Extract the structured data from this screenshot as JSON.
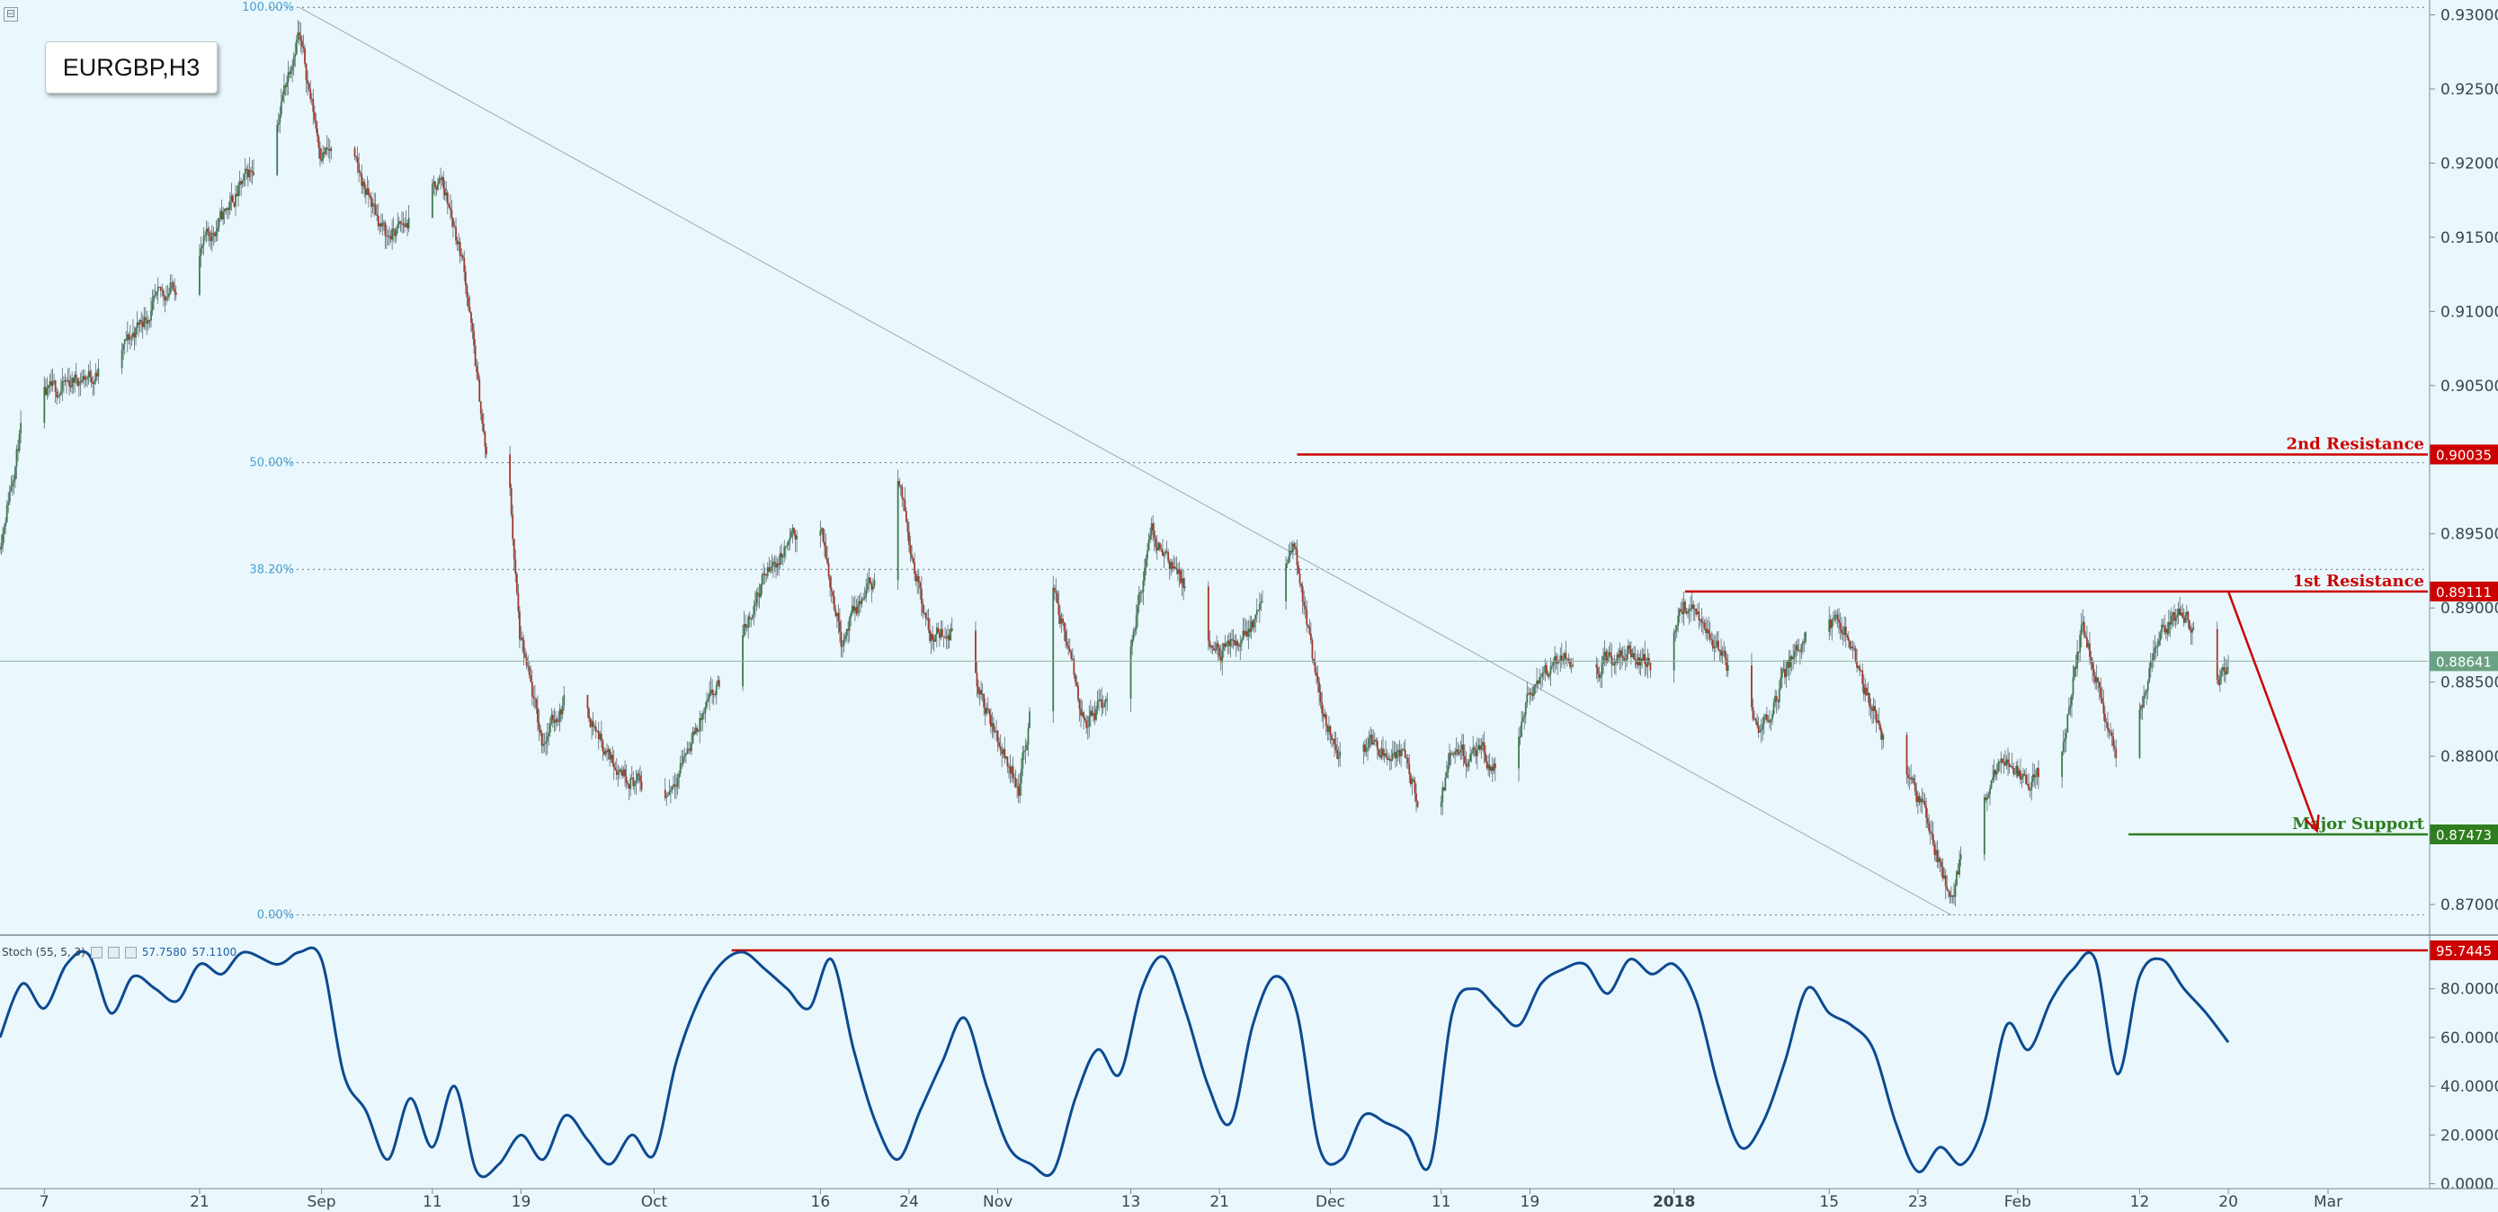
{
  "symbol": "EURGBP,H3",
  "collapse_glyph": "⊟",
  "colors": {
    "background": "#eaf8fd",
    "bull_candle": "#3d7a4f",
    "bear_candle": "#a3382b",
    "resistance": "#cc0000",
    "support": "#2e7d1f",
    "stoch_line": "#0d4a91",
    "fib_line": "#6f8590",
    "current_price": "#6aa383"
  },
  "chart_data": [
    {
      "type": "candlestick",
      "ylim": [
        0.868,
        0.931
      ],
      "y_ticks": [
        "0.93000",
        "0.92500",
        "0.92000",
        "0.91500",
        "0.91000",
        "0.90500",
        "0.89500",
        "0.89000",
        "0.88500",
        "0.88000",
        "0.87000"
      ],
      "y_tick_values": [
        0.93,
        0.925,
        0.92,
        0.915,
        0.91,
        0.905,
        0.895,
        0.89,
        0.885,
        0.88,
        0.87
      ],
      "x_tick_labels": [
        "7",
        "21",
        "Sep",
        "11",
        "19",
        "Oct",
        "16",
        "24",
        "Nov",
        "13",
        "21",
        "Dec",
        "11",
        "19",
        "2018",
        "15",
        "23",
        "Feb",
        "12",
        "20",
        "Mar"
      ],
      "x_tick_dates": [
        "2017-08-07",
        "2017-08-21",
        "2017-09-01",
        "2017-09-11",
        "2017-09-19",
        "2017-10-01",
        "2017-10-16",
        "2017-10-24",
        "2017-11-01",
        "2017-11-13",
        "2017-11-21",
        "2017-12-01",
        "2017-12-11",
        "2017-12-19",
        "2018-01-01",
        "2018-01-15",
        "2018-01-23",
        "2018-02-01",
        "2018-02-12",
        "2018-02-20",
        "2018-03-01"
      ],
      "x_range": [
        "2017-08-03",
        "2018-03-10"
      ],
      "last_bar_date": "2018-02-20",
      "price_path": [
        [
          "2017-08-03",
          0.894
        ],
        [
          "2017-08-05",
          0.902
        ],
        [
          "2017-08-07",
          0.904
        ],
        [
          "2017-08-10",
          0.9055
        ],
        [
          "2017-08-13",
          0.906
        ],
        [
          "2017-08-16",
          0.9095
        ],
        [
          "2017-08-19",
          0.912
        ],
        [
          "2017-08-22",
          0.915
        ],
        [
          "2017-08-25",
          0.9185
        ],
        [
          "2017-08-28",
          0.9225
        ],
        [
          "2017-08-30",
          0.929
        ],
        [
          "2017-09-01",
          0.921
        ],
        [
          "2017-09-04",
          0.92
        ],
        [
          "2017-09-07",
          0.915
        ],
        [
          "2017-09-09",
          0.916
        ],
        [
          "2017-09-12",
          0.919
        ],
        [
          "2017-09-14",
          0.913
        ],
        [
          "2017-09-16",
          0.9
        ],
        [
          "2017-09-18",
          0.899
        ],
        [
          "2017-09-19",
          0.888
        ],
        [
          "2017-09-21",
          0.881
        ],
        [
          "2017-09-24",
          0.885
        ],
        [
          "2017-09-27",
          0.88
        ],
        [
          "2017-09-30",
          0.878
        ],
        [
          "2017-10-02",
          0.877
        ],
        [
          "2017-10-05",
          0.882
        ],
        [
          "2017-10-08",
          0.886
        ],
        [
          "2017-10-11",
          0.892
        ],
        [
          "2017-10-14",
          0.895
        ],
        [
          "2017-10-16",
          0.896
        ],
        [
          "2017-10-18",
          0.888
        ],
        [
          "2017-10-21",
          0.892
        ],
        [
          "2017-10-23",
          0.899
        ],
        [
          "2017-10-26",
          0.888
        ],
        [
          "2017-10-29",
          0.889
        ],
        [
          "2017-10-31",
          0.883
        ],
        [
          "2017-11-03",
          0.878
        ],
        [
          "2017-11-06",
          0.892
        ],
        [
          "2017-11-09",
          0.882
        ],
        [
          "2017-11-11",
          0.884
        ],
        [
          "2017-11-13",
          0.887
        ],
        [
          "2017-11-15",
          0.895
        ],
        [
          "2017-11-17",
          0.893
        ],
        [
          "2017-11-20",
          0.887
        ],
        [
          "2017-11-22",
          0.887
        ],
        [
          "2017-11-25",
          0.89
        ],
        [
          "2017-11-28",
          0.894
        ],
        [
          "2017-11-30",
          0.884
        ],
        [
          "2017-12-02",
          0.88
        ],
        [
          "2017-12-05",
          0.881
        ],
        [
          "2017-12-08",
          0.88
        ],
        [
          "2017-12-10",
          0.873
        ],
        [
          "2017-12-12",
          0.88
        ],
        [
          "2017-12-15",
          0.88
        ],
        [
          "2017-12-17",
          0.878
        ],
        [
          "2017-12-19",
          0.884
        ],
        [
          "2017-12-22",
          0.887
        ],
        [
          "2017-12-25",
          0.886
        ],
        [
          "2017-12-28",
          0.887
        ],
        [
          "2017-12-31",
          0.886
        ],
        [
          "2018-01-02",
          0.89
        ],
        [
          "2018-01-04",
          0.889
        ],
        [
          "2018-01-07",
          0.884
        ],
        [
          "2018-01-09",
          0.882
        ],
        [
          "2018-01-12",
          0.887
        ],
        [
          "2018-01-14",
          0.89
        ],
        [
          "2018-01-17",
          0.888
        ],
        [
          "2018-01-19",
          0.883
        ],
        [
          "2018-01-21",
          0.88
        ],
        [
          "2018-01-24",
          0.876
        ],
        [
          "2018-01-26",
          0.87
        ],
        [
          "2018-01-28",
          0.876
        ],
        [
          "2018-01-31",
          0.88
        ],
        [
          "2018-02-02",
          0.878
        ],
        [
          "2018-02-05",
          0.88
        ],
        [
          "2018-02-07",
          0.889
        ],
        [
          "2018-02-08",
          0.886
        ],
        [
          "2018-02-10",
          0.88
        ],
        [
          "2018-02-11",
          0.875
        ],
        [
          "2018-02-12",
          0.883
        ],
        [
          "2018-02-14",
          0.888
        ],
        [
          "2018-02-16",
          0.89
        ],
        [
          "2018-02-18",
          0.887
        ],
        [
          "2018-02-19",
          0.885
        ],
        [
          "2018-02-20",
          0.8864
        ]
      ],
      "fib_levels": [
        {
          "label": "100.00%",
          "price": 0.9305
        },
        {
          "label": "50.00%",
          "price": 0.8998
        },
        {
          "label": "38.20%",
          "price": 0.8926
        },
        {
          "label": "0.00%",
          "price": 0.8693
        }
      ],
      "fib_trendline": {
        "from": [
          "2017-08-30",
          0.9305
        ],
        "to": [
          "2018-01-26",
          0.8693
        ]
      },
      "levels": [
        {
          "name": "2nd Resistance",
          "value": 0.90035,
          "label": "0.90035",
          "start": "2017-11-28",
          "role": "resistance"
        },
        {
          "name": "1st Resistance",
          "value": 0.89111,
          "label": "0.89111",
          "start": "2018-01-02",
          "role": "resistance"
        },
        {
          "name": "Major Support",
          "value": 0.87473,
          "label": "0.87473",
          "start": "2018-02-11",
          "role": "support"
        }
      ],
      "current_price": {
        "value": 0.88641,
        "label": "0.88641"
      },
      "projection_arrow": {
        "from": [
          "2018-02-20",
          0.89111
        ],
        "to": [
          "2018-02-28",
          0.87473
        ]
      }
    },
    {
      "type": "line",
      "title": "Stoch (55, 5, 3)",
      "legend_values": [
        "57.7580",
        "57.1100"
      ],
      "ylim": [
        -2,
        102
      ],
      "y_ticks": [
        "80.0000",
        "60.0000",
        "40.0000",
        "20.0000",
        "0.0000"
      ],
      "y_tick_values": [
        80,
        60,
        40,
        20,
        0
      ],
      "level": {
        "value": 95.7445,
        "label": "95.7445"
      },
      "stoch_path": [
        [
          "2017-08-03",
          60
        ],
        [
          "2017-08-05",
          82
        ],
        [
          "2017-08-07",
          72
        ],
        [
          "2017-08-09",
          90
        ],
        [
          "2017-08-11",
          94
        ],
        [
          "2017-08-13",
          70
        ],
        [
          "2017-08-15",
          85
        ],
        [
          "2017-08-17",
          80
        ],
        [
          "2017-08-19",
          75
        ],
        [
          "2017-08-21",
          90
        ],
        [
          "2017-08-23",
          86
        ],
        [
          "2017-08-25",
          95
        ],
        [
          "2017-08-28",
          90
        ],
        [
          "2017-08-30",
          95
        ],
        [
          "2017-09-01",
          92
        ],
        [
          "2017-09-03",
          45
        ],
        [
          "2017-09-05",
          30
        ],
        [
          "2017-09-07",
          10
        ],
        [
          "2017-09-09",
          35
        ],
        [
          "2017-09-11",
          15
        ],
        [
          "2017-09-13",
          40
        ],
        [
          "2017-09-15",
          5
        ],
        [
          "2017-09-17",
          8
        ],
        [
          "2017-09-19",
          20
        ],
        [
          "2017-09-21",
          10
        ],
        [
          "2017-09-23",
          28
        ],
        [
          "2017-09-25",
          18
        ],
        [
          "2017-09-27",
          8
        ],
        [
          "2017-09-29",
          20
        ],
        [
          "2017-10-01",
          12
        ],
        [
          "2017-10-03",
          50
        ],
        [
          "2017-10-05",
          75
        ],
        [
          "2017-10-07",
          90
        ],
        [
          "2017-10-09",
          95
        ],
        [
          "2017-10-11",
          88
        ],
        [
          "2017-10-13",
          80
        ],
        [
          "2017-10-15",
          72
        ],
        [
          "2017-10-17",
          92
        ],
        [
          "2017-10-19",
          55
        ],
        [
          "2017-10-21",
          25
        ],
        [
          "2017-10-23",
          10
        ],
        [
          "2017-10-25",
          30
        ],
        [
          "2017-10-27",
          50
        ],
        [
          "2017-10-29",
          68
        ],
        [
          "2017-10-31",
          40
        ],
        [
          "2017-11-02",
          15
        ],
        [
          "2017-11-04",
          8
        ],
        [
          "2017-11-06",
          5
        ],
        [
          "2017-11-08",
          35
        ],
        [
          "2017-11-10",
          55
        ],
        [
          "2017-11-12",
          45
        ],
        [
          "2017-11-14",
          80
        ],
        [
          "2017-11-16",
          93
        ],
        [
          "2017-11-18",
          70
        ],
        [
          "2017-11-20",
          40
        ],
        [
          "2017-11-22",
          25
        ],
        [
          "2017-11-24",
          65
        ],
        [
          "2017-11-26",
          85
        ],
        [
          "2017-11-28",
          70
        ],
        [
          "2017-11-30",
          15
        ],
        [
          "2017-12-02",
          10
        ],
        [
          "2017-12-04",
          28
        ],
        [
          "2017-12-06",
          25
        ],
        [
          "2017-12-08",
          20
        ],
        [
          "2017-12-10",
          8
        ],
        [
          "2017-12-12",
          70
        ],
        [
          "2017-12-14",
          80
        ],
        [
          "2017-12-16",
          72
        ],
        [
          "2017-12-18",
          65
        ],
        [
          "2017-12-20",
          82
        ],
        [
          "2017-12-22",
          88
        ],
        [
          "2017-12-24",
          90
        ],
        [
          "2017-12-26",
          78
        ],
        [
          "2017-12-28",
          92
        ],
        [
          "2017-12-30",
          86
        ],
        [
          "2018-01-01",
          90
        ],
        [
          "2018-01-03",
          75
        ],
        [
          "2018-01-05",
          40
        ],
        [
          "2018-01-07",
          15
        ],
        [
          "2018-01-09",
          25
        ],
        [
          "2018-01-11",
          50
        ],
        [
          "2018-01-13",
          80
        ],
        [
          "2018-01-15",
          70
        ],
        [
          "2018-01-17",
          65
        ],
        [
          "2018-01-19",
          55
        ],
        [
          "2018-01-21",
          25
        ],
        [
          "2018-01-23",
          5
        ],
        [
          "2018-01-25",
          15
        ],
        [
          "2018-01-27",
          8
        ],
        [
          "2018-01-29",
          25
        ],
        [
          "2018-01-31",
          65
        ],
        [
          "2018-02-02",
          55
        ],
        [
          "2018-02-04",
          75
        ],
        [
          "2018-02-06",
          88
        ],
        [
          "2018-02-08",
          92
        ],
        [
          "2018-02-10",
          45
        ],
        [
          "2018-02-12",
          85
        ],
        [
          "2018-02-14",
          92
        ],
        [
          "2018-02-16",
          80
        ],
        [
          "2018-02-18",
          70
        ],
        [
          "2018-02-20",
          58
        ]
      ]
    }
  ]
}
